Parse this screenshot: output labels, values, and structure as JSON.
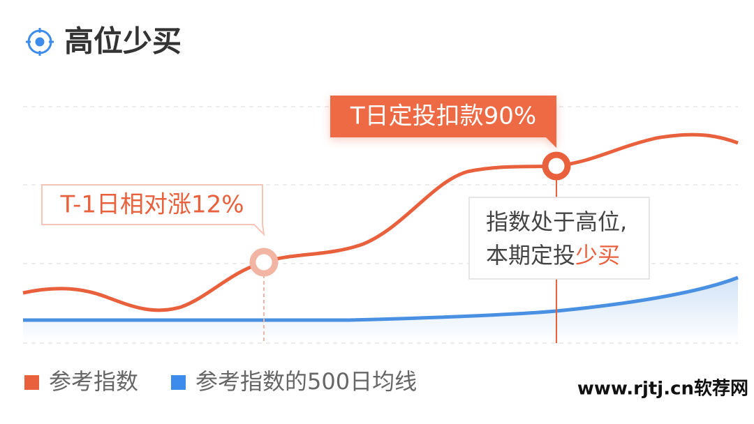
{
  "header": {
    "title": "高位少买"
  },
  "callouts": {
    "rise": "T-1日相对涨12%",
    "deduct": "T日定投扣款90%"
  },
  "note": {
    "line1": "指数处于高位,",
    "line2_prefix": "本期定投",
    "line2_highlight": "少买"
  },
  "legend": {
    "items": [
      "参考指数",
      "参考指数的500日均线"
    ]
  },
  "watermark": "www.rjtj.cn软荐网"
}
